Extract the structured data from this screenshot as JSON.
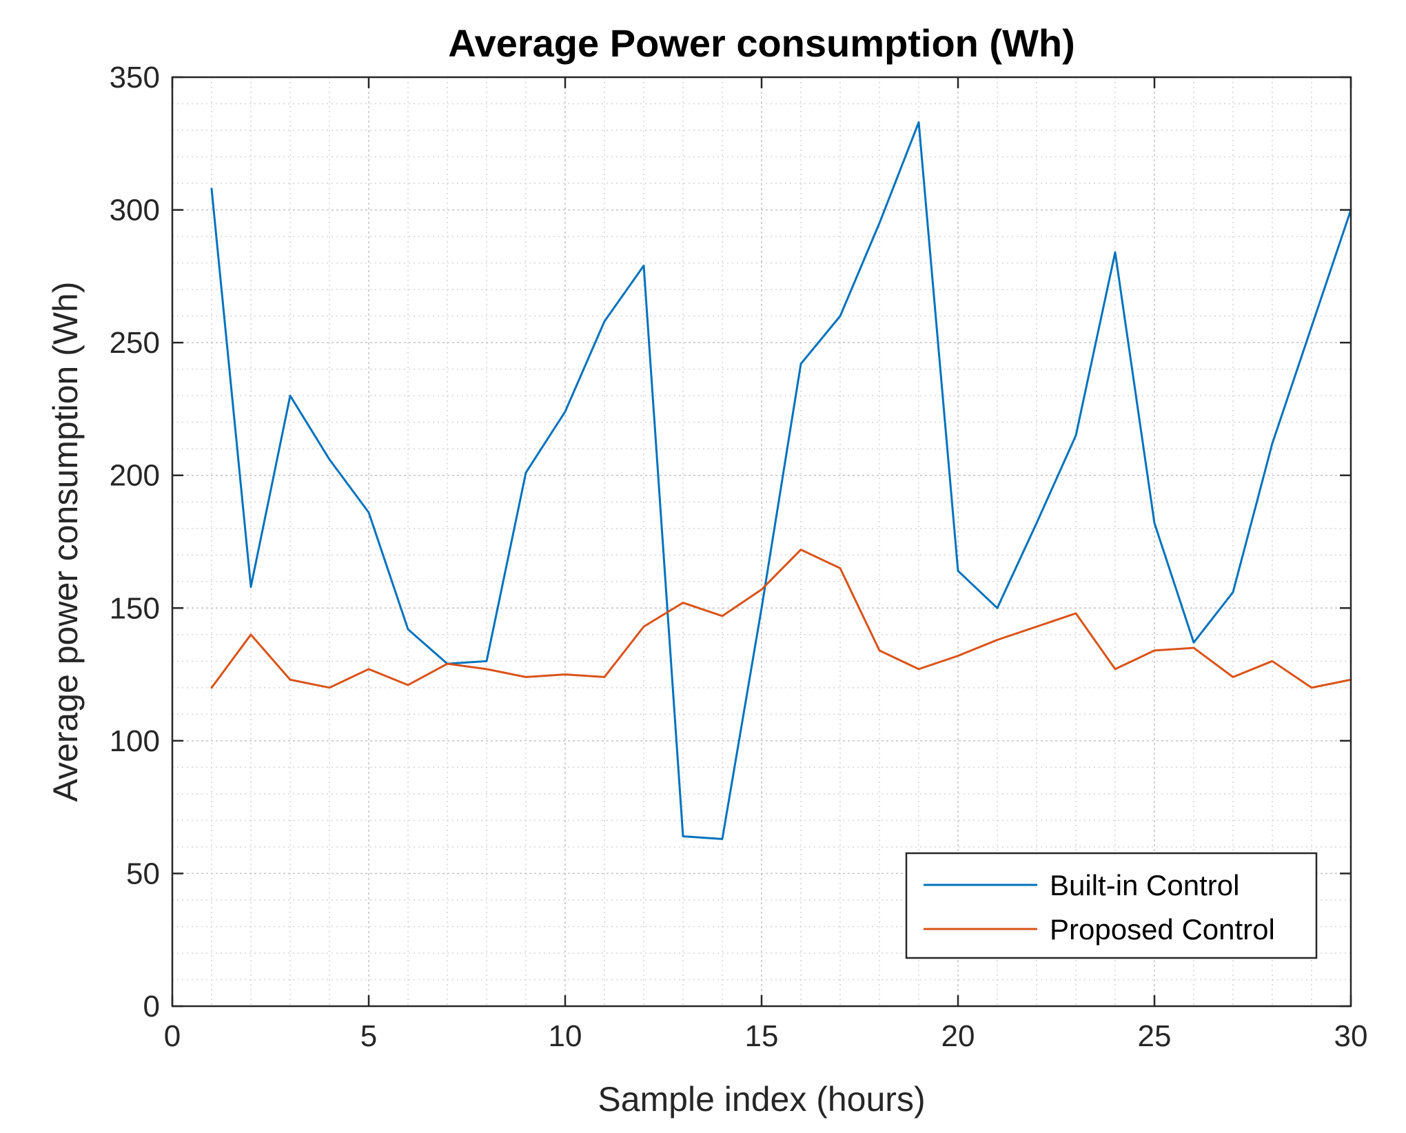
{
  "chart_data": {
    "type": "line",
    "title": "Average Power consumption (Wh)",
    "xlabel": "Sample index (hours)",
    "ylabel": "Average power consumption (Wh)",
    "xlim": [
      0,
      30
    ],
    "ylim": [
      0,
      350
    ],
    "xticks": [
      0,
      5,
      10,
      15,
      20,
      25,
      30
    ],
    "yticks": [
      0,
      50,
      100,
      150,
      200,
      250,
      300,
      350
    ],
    "grid": true,
    "minor_grid": true,
    "legend_position": "bottom-right",
    "x": [
      1,
      2,
      3,
      4,
      5,
      6,
      7,
      8,
      9,
      10,
      11,
      12,
      13,
      14,
      15,
      16,
      17,
      18,
      19,
      20,
      21,
      22,
      23,
      24,
      25,
      26,
      27,
      28,
      29,
      30
    ],
    "series": [
      {
        "name": "Built-in Control",
        "color": "#0072BD",
        "values": [
          308,
          158,
          230,
          206,
          186,
          142,
          129,
          130,
          201,
          224,
          258,
          279,
          64,
          63,
          150,
          242,
          260,
          295,
          333,
          164,
          150,
          182,
          215,
          284,
          182,
          137,
          156,
          212,
          256,
          300
        ]
      },
      {
        "name": "Proposed Control",
        "color": "#D95319",
        "values": [
          120,
          140,
          123,
          120,
          127,
          121,
          129,
          127,
          124,
          125,
          124,
          143,
          152,
          147,
          157,
          172,
          165,
          134,
          127,
          132,
          138,
          143,
          148,
          127,
          134,
          135,
          124,
          130,
          120,
          123
        ]
      }
    ]
  }
}
